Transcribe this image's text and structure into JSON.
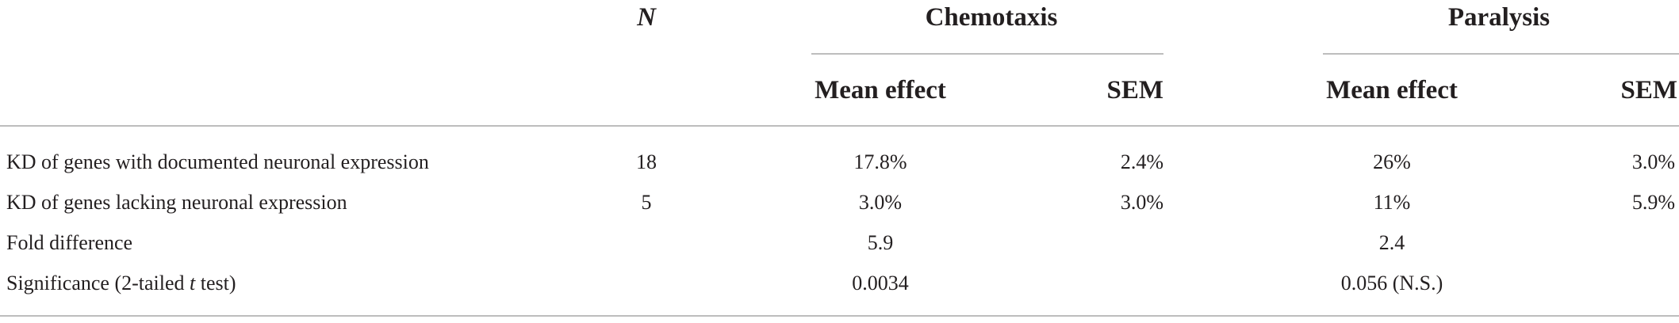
{
  "table": {
    "header": {
      "n": "N",
      "chemotaxis": "Chemotaxis",
      "paralysis": "Paralysis",
      "mean_effect": "Mean effect",
      "sem": "SEM"
    },
    "rows": [
      {
        "label": "KD of genes with documented neuronal expression",
        "n": "18",
        "chem_mean": "17.8%",
        "chem_sem": "2.4%",
        "par_mean": "26%",
        "par_sem": "3.0%"
      },
      {
        "label": "KD of genes lacking neuronal expression",
        "n": "5",
        "chem_mean": "3.0%",
        "chem_sem": "3.0%",
        "par_mean": "11%",
        "par_sem": "5.9%"
      },
      {
        "label": "Fold difference",
        "chem_value": "5.9",
        "par_value": "2.4"
      },
      {
        "label_prefix": "Significance (2-tailed ",
        "label_italic": "t",
        "label_suffix": " test)",
        "chem_value": "0.0034",
        "par_value": "0.056 (N.S.)"
      }
    ]
  }
}
